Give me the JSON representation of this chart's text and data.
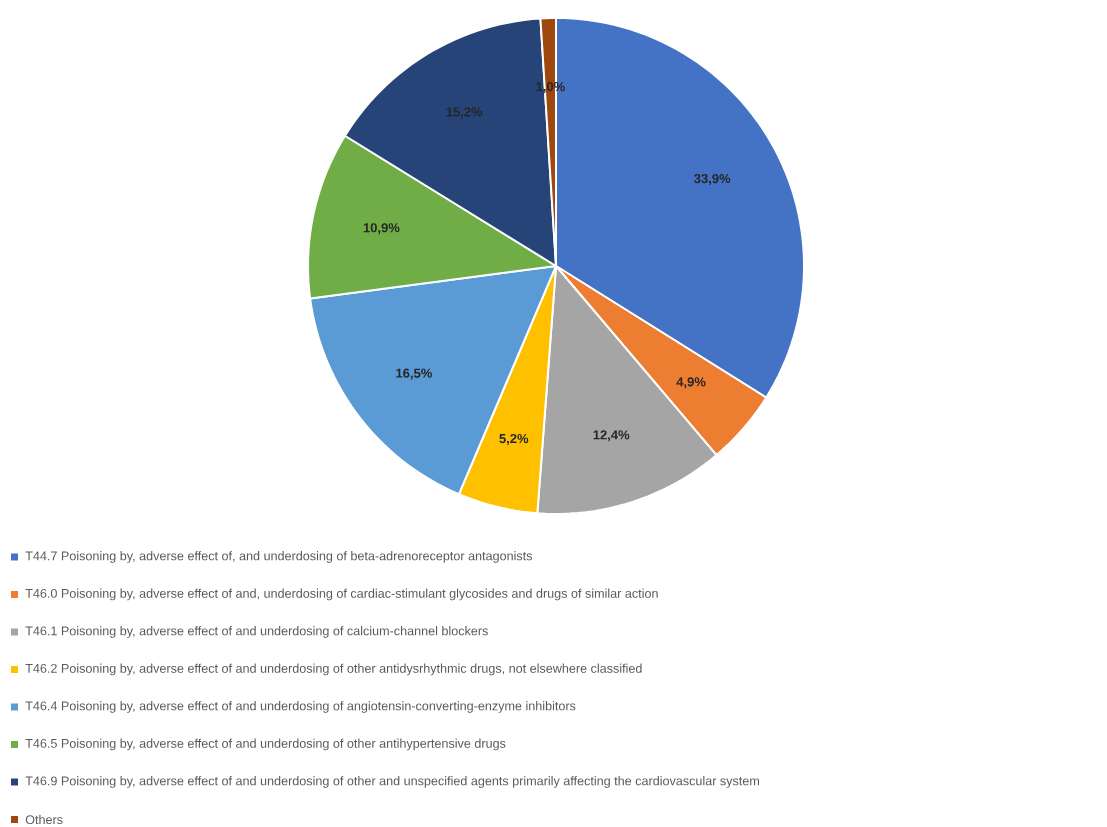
{
  "chart_data": {
    "type": "pie",
    "categories": [
      "T44.7 Poisoning by, adverse effect of, and underdosing of beta-adrenoreceptor antagonists",
      "T46.0 Poisoning by, adverse effect of and, underdosing of cardiac-stimulant glycosides and drugs of similar action",
      "T46.1 Poisoning by, adverse effect of and underdosing of calcium-channel blockers",
      "T46.2 Poisoning by, adverse effect of and underdosing of other antidysrhythmic drugs, not elsewhere classified",
      "T46.4 Poisoning by, adverse effect of and underdosing of angiotensin-converting-enzyme inhibitors",
      "T46.5 Poisoning by, adverse effect of and underdosing of other antihypertensive drugs",
      "T46.9 Poisoning by, adverse effect of and underdosing of other and unspecified agents primarily affecting the cardiovascular system",
      "Others"
    ],
    "values": [
      33.9,
      4.9,
      12.4,
      5.2,
      16.5,
      10.9,
      15.2,
      1.0
    ],
    "value_labels": [
      "33,9%",
      "4,9%",
      "12,4%",
      "5,2%",
      "16,5%",
      "10,9%",
      "15,2%",
      "1,0%"
    ],
    "colors": [
      "#4472c4",
      "#ed7d31",
      "#a5a5a5",
      "#ffc000",
      "#5b9bd5",
      "#70ad47",
      "#264478",
      "#9e480e"
    ],
    "legend": "bottom"
  }
}
